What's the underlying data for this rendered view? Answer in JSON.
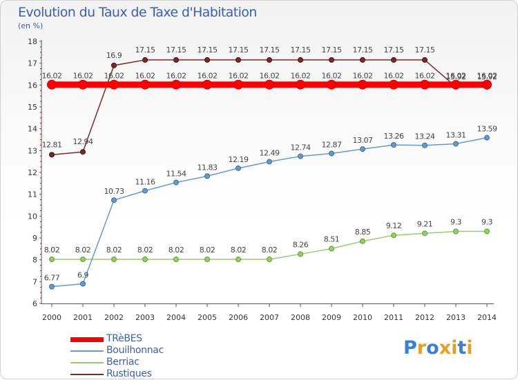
{
  "chart_data": {
    "type": "line",
    "title": "Evolution du Taux de Taxe d'Habitation",
    "subtitle": "(en %)",
    "categories": [
      "2000",
      "2001",
      "2002",
      "2003",
      "2004",
      "2005",
      "2006",
      "2007",
      "2008",
      "2009",
      "2010",
      "2011",
      "2012",
      "2013",
      "2014"
    ],
    "ylim": [
      6,
      18
    ],
    "yticks": [
      "6",
      "7",
      "8",
      "9",
      "10",
      "11",
      "12",
      "13",
      "14",
      "15",
      "16",
      "17",
      "18"
    ],
    "grid": false,
    "series": [
      {
        "name": "TRèBES",
        "color": "#ff0000",
        "values": [
          16.02,
          16.02,
          16.02,
          16.02,
          16.02,
          16.02,
          16.02,
          16.02,
          16.02,
          16.02,
          16.02,
          16.02,
          16.02,
          16.02,
          16.02
        ],
        "labels": [
          "16.02",
          "16.02",
          "16.02",
          "16.02",
          "16.02",
          "16.02",
          "16.02",
          "16.02",
          "16.02",
          "16.02",
          "16.02",
          "16.02",
          "16.02",
          "16.02",
          "16.02"
        ]
      },
      {
        "name": "Bouilhonnac",
        "color": "#6699cc",
        "values": [
          6.77,
          6.9,
          10.73,
          11.16,
          11.54,
          11.83,
          12.19,
          12.49,
          12.74,
          12.87,
          13.07,
          13.26,
          13.24,
          13.31,
          13.59
        ],
        "labels": [
          "6.77",
          "6.9",
          "10.73",
          "11.16",
          "11.54",
          "11.83",
          "12.19",
          "12.49",
          "12.74",
          "12.87",
          "13.07",
          "13.26",
          "13.24",
          "13.31",
          "13.59"
        ]
      },
      {
        "name": "Berriac",
        "color": "#99cc66",
        "values": [
          8.02,
          8.02,
          8.02,
          8.02,
          8.02,
          8.02,
          8.02,
          8.02,
          8.26,
          8.51,
          8.85,
          9.12,
          9.21,
          9.3,
          9.3
        ],
        "labels": [
          "8.02",
          "8.02",
          "8.02",
          "8.02",
          "8.02",
          "8.02",
          "8.02",
          "8.02",
          "8.26",
          "8.51",
          "8.85",
          "9.12",
          "9.21",
          "9.3",
          "9.3"
        ]
      },
      {
        "name": "Rustiques",
        "color": "#7a2a2a",
        "values": [
          12.81,
          12.94,
          16.9,
          17.15,
          17.15,
          17.15,
          17.15,
          17.15,
          17.15,
          17.15,
          17.15,
          17.15,
          17.15,
          15.92,
          15.92
        ],
        "labels": [
          "12.81",
          "12.94",
          "16.9",
          "17.15",
          "17.15",
          "17.15",
          "17.15",
          "17.15",
          "17.15",
          "17.15",
          "17.15",
          "17.15",
          "17.15",
          "15.92",
          "15.92"
        ]
      }
    ]
  },
  "brand": {
    "text": "Proxiti"
  }
}
